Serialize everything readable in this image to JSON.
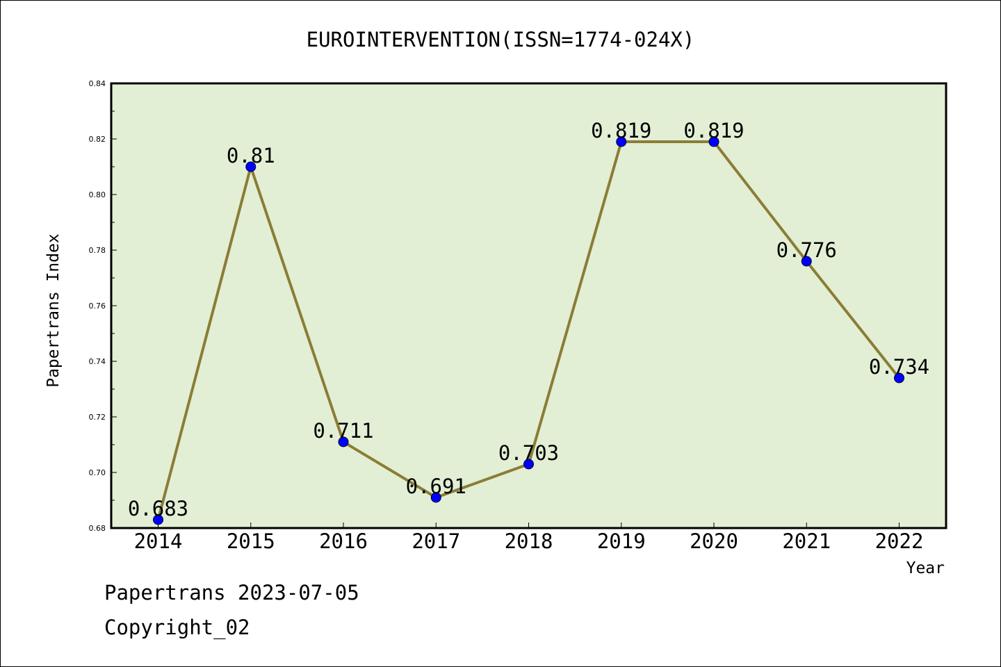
{
  "chart_data": {
    "type": "line",
    "title": "EUROINTERVENTION(ISSN=1774-024X)",
    "xlabel": "Year",
    "ylabel": "Papertrans Index",
    "categories": [
      "2014",
      "2015",
      "2016",
      "2017",
      "2018",
      "2019",
      "2020",
      "2021",
      "2022"
    ],
    "values": [
      0.683,
      0.81,
      0.711,
      0.691,
      0.703,
      0.819,
      0.819,
      0.776,
      0.734
    ],
    "data_labels": [
      "0.683",
      "0.81",
      "0.711",
      "0.691",
      "0.703",
      "0.819",
      "0.819",
      "0.776",
      "0.734"
    ],
    "ylim": [
      0.68,
      0.84
    ],
    "yticks": [
      "0.68",
      "0.70",
      "0.72",
      "0.74",
      "0.76",
      "0.78",
      "0.80",
      "0.82",
      "0.84"
    ],
    "grid": false,
    "colors": {
      "plot_background": "#e2efd5",
      "line": "#8b7d35",
      "marker": "#0000ff"
    }
  },
  "footer": {
    "line1": "Papertrans 2023-07-05",
    "line2": "Copyright_02"
  }
}
